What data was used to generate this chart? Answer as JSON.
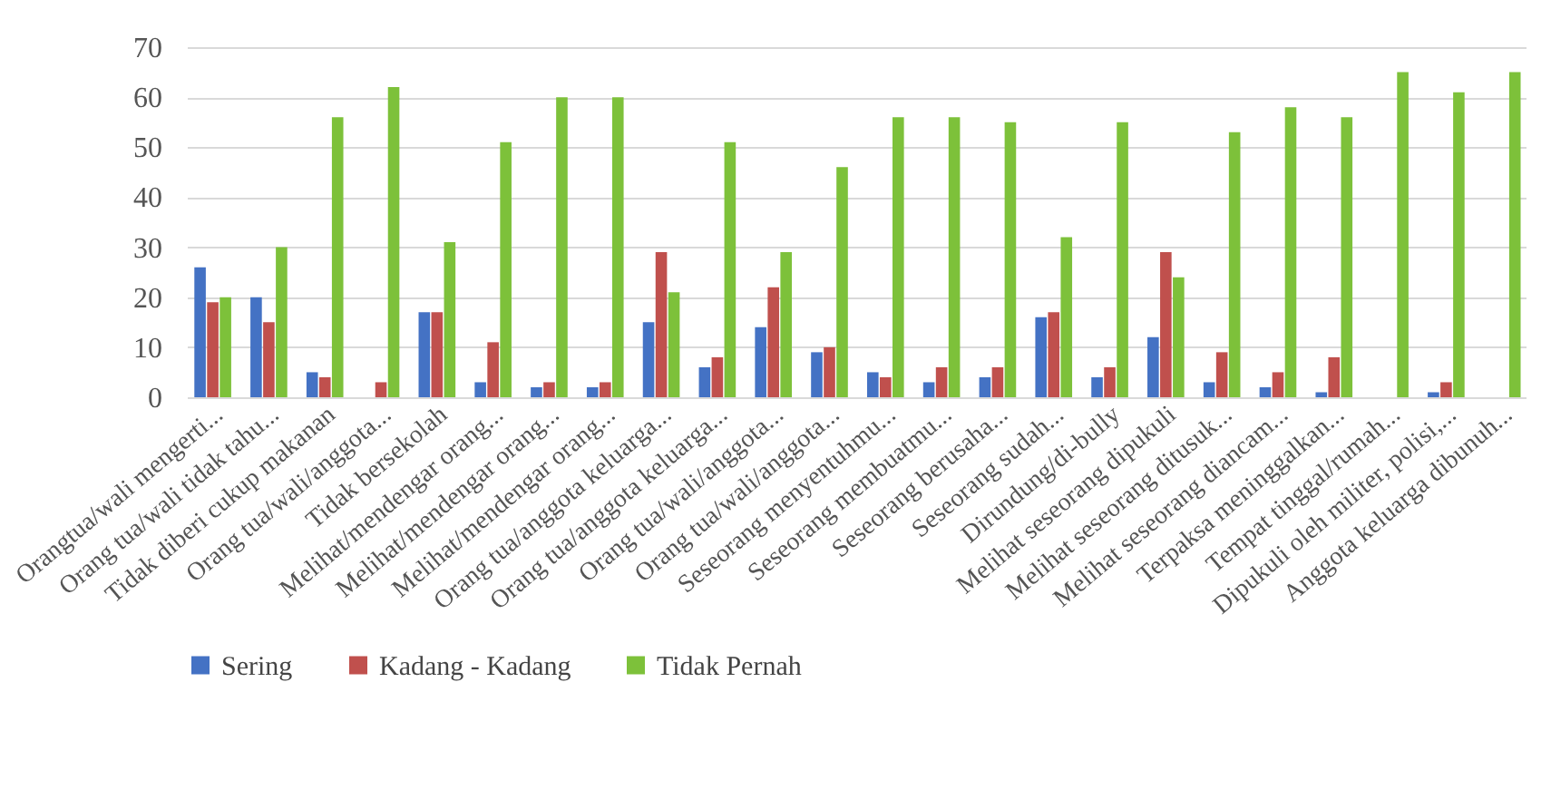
{
  "chart_data": {
    "type": "bar",
    "categories": [
      "Orangtua/wali mengerti...",
      "Orang tua/wali tidak tahu...",
      "Tidak diberi cukup makanan",
      "Orang tua/wali/anggota...",
      "Tidak bersekolah",
      "Melihat/mendengar orang...",
      "Melihat/mendengar orang...",
      "Melihat/mendengar orang...",
      "Orang tua/anggota keluarga...",
      "Orang tua/anggota keluarga...",
      "Orang tua/wali/anggota...",
      "Orang tua/wali/anggota...",
      "Seseorang menyentuhmu...",
      "Seseorang membuatmu...",
      "Seseorang berusaha...",
      "Seseorang sudah...",
      "Dirundung/di-bully",
      "Melihat seseorang dipukuli",
      "Melihat seseorang ditusuk...",
      "Melihat seseorang diancam...",
      "Terpaksa meninggalkan...",
      "Tempat tinggal/rumah...",
      "Dipukuli oleh militer, polisi,...",
      "Anggota keluarga dibunuh..."
    ],
    "series": [
      {
        "name": "Sering",
        "color": "#4472c4",
        "values": [
          26,
          20,
          5,
          null,
          17,
          3,
          2,
          2,
          15,
          6,
          14,
          9,
          5,
          3,
          4,
          16,
          4,
          12,
          3,
          2,
          1,
          null,
          1,
          null
        ]
      },
      {
        "name": "Kadang - Kadang",
        "color": "#c0504d",
        "values": [
          19,
          15,
          4,
          3,
          17,
          11,
          3,
          3,
          29,
          8,
          22,
          10,
          4,
          6,
          6,
          17,
          6,
          29,
          9,
          5,
          8,
          null,
          3,
          null
        ]
      },
      {
        "name": "Tidak Pernah",
        "color": "#7dc13a",
        "values": [
          20,
          30,
          56,
          62,
          31,
          51,
          60,
          60,
          21,
          51,
          29,
          46,
          56,
          56,
          55,
          32,
          55,
          24,
          53,
          58,
          56,
          65,
          61,
          65
        ]
      }
    ],
    "ylim": [
      0,
      70
    ],
    "yticks": [
      0,
      10,
      20,
      30,
      40,
      50,
      60,
      70
    ],
    "grid": "y",
    "legend": "bottom"
  }
}
